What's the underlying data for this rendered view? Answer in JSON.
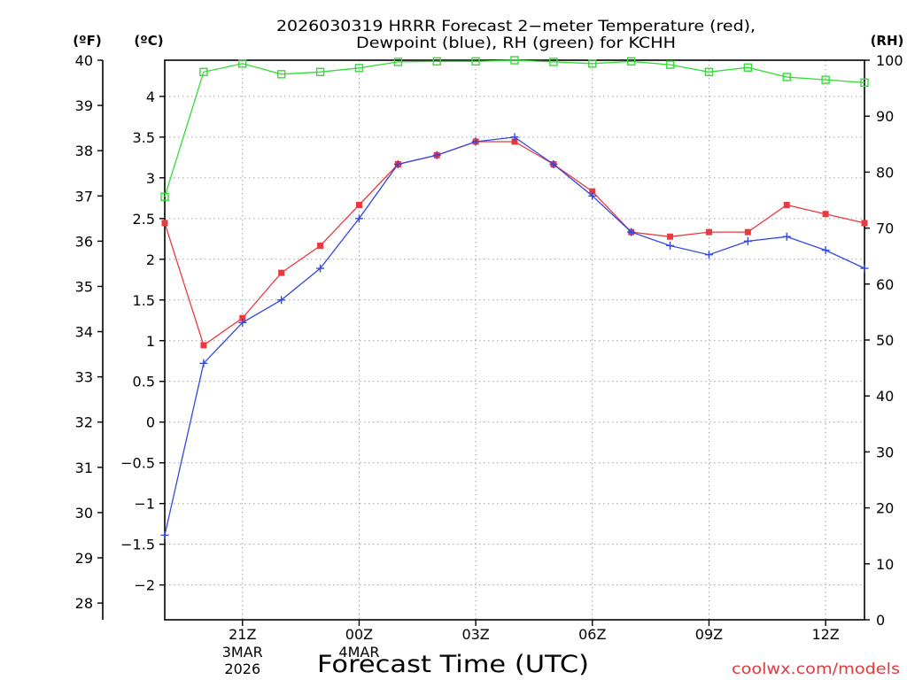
{
  "credit": "coolwx.com/models",
  "colors": {
    "credit": "#e2393f",
    "grid": "#a0a0a0",
    "axis": "#000000",
    "background": "#ffffff"
  },
  "chart_data": {
    "type": "line",
    "title_lines": [
      "2026030319 HRRR Forecast 2−meter Temperature (red),",
      "Dewpoint (blue), RH (green) for KCHH"
    ],
    "xlabel": "Forecast Time (UTC)",
    "ylabel_left_f": "(ºF)",
    "ylabel_left_c": "(ºC)",
    "ylabel_right": "(RH)",
    "x": [
      0,
      1,
      2,
      3,
      4,
      5,
      6,
      7,
      8,
      9,
      10,
      11,
      12,
      13,
      14,
      15,
      16,
      17,
      18
    ],
    "xlim": [
      0,
      18
    ],
    "x_ticks": [
      {
        "hour": 2,
        "label": "21Z",
        "date": [
          "3MAR",
          "2026"
        ]
      },
      {
        "hour": 5,
        "label": "00Z",
        "date": [
          "4MAR"
        ]
      },
      {
        "hour": 8,
        "label": "03Z",
        "date": []
      },
      {
        "hour": 11,
        "label": "06Z",
        "date": []
      },
      {
        "hour": 14,
        "label": "09Z",
        "date": []
      },
      {
        "hour": 17,
        "label": "12Z",
        "date": []
      }
    ],
    "y_left_f": {
      "range": [
        27.63,
        40
      ],
      "ticks": [
        "28",
        "29",
        "30",
        "31",
        "32",
        "33",
        "34",
        "35",
        "36",
        "37",
        "38",
        "39",
        "40"
      ]
    },
    "y_left_c": {
      "ticks": [
        "−2",
        "−1.5",
        "−1",
        "−0.5",
        "0",
        "0.5",
        "1",
        "1.5",
        "2",
        "2.5",
        "3",
        "3.5",
        "4"
      ]
    },
    "y_right": {
      "range": [
        0,
        100
      ],
      "ticks": [
        "0",
        "10",
        "20",
        "30",
        "40",
        "50",
        "60",
        "70",
        "80",
        "90",
        "100"
      ]
    },
    "grid": true,
    "series": [
      {
        "name": "Temperature",
        "color": "#ea3a3f",
        "values": [
          36.4,
          33.7,
          34.3,
          35.3,
          35.9,
          36.8,
          37.7,
          37.9,
          38.2,
          38.2,
          37.7,
          37.1,
          36.2,
          36.1,
          36.2,
          36.2,
          36.8,
          36.6,
          36.4
        ]
      },
      {
        "name": "Dewpoint",
        "color": "#3448e0",
        "values": [
          29.5,
          33.3,
          34.2,
          34.7,
          35.4,
          36.5,
          37.7,
          37.9,
          38.2,
          38.3,
          37.7,
          37.0,
          36.2,
          35.9,
          35.7,
          36.0,
          36.1,
          35.8,
          35.4
        ]
      },
      {
        "name": "RH",
        "color": "#33dd33",
        "values": [
          75.6,
          97.9,
          99.4,
          97.5,
          97.9,
          98.6,
          99.7,
          99.8,
          99.8,
          100,
          99.7,
          99.4,
          99.8,
          99.2,
          97.9,
          98.7,
          97.0,
          96.5,
          96.0
        ]
      }
    ]
  }
}
